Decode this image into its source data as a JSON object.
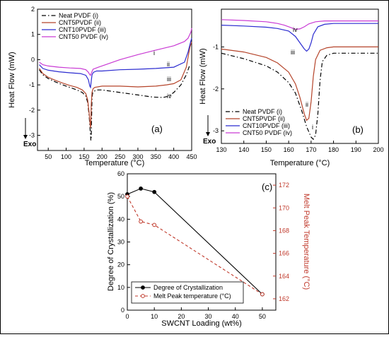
{
  "chart_data": [
    {
      "id": "a",
      "type": "line",
      "panel_label": "(a)",
      "xlabel": "Temperature (°C)",
      "ylabel": "Heat Flow (mW)",
      "exo_label": "Exo",
      "xlim": [
        20,
        450
      ],
      "ylim": [
        -3.6,
        2.0
      ],
      "xticks": [
        50,
        100,
        150,
        200,
        250,
        300,
        350,
        400,
        450
      ],
      "yticks": [
        -3,
        -2,
        -1,
        0,
        1,
        2
      ],
      "series": [
        {
          "name": "Neat PVDF (i)",
          "color": "#000000",
          "dash": "dashdot",
          "tag": "i",
          "x": [
            25,
            35,
            50,
            70,
            90,
            110,
            130,
            145,
            155,
            160,
            164,
            167,
            169,
            170,
            171,
            172,
            174,
            178,
            185,
            200,
            250,
            300,
            340,
            370,
            385,
            400,
            420,
            435,
            445
          ],
          "y": [
            -0.4,
            -0.6,
            -0.75,
            -0.88,
            -1.0,
            -1.1,
            -1.2,
            -1.3,
            -1.45,
            -1.7,
            -2.2,
            -2.8,
            -3.2,
            -3.1,
            -2.2,
            -1.5,
            -1.3,
            -1.25,
            -1.2,
            -1.2,
            -1.3,
            -1.4,
            -1.48,
            -1.5,
            -1.45,
            -1.3,
            -1.0,
            -0.6,
            -0.2
          ]
        },
        {
          "name": "CNT5PVDF (ii)",
          "color": "#b5442a",
          "dash": "solid",
          "tag": "ii",
          "x": [
            25,
            35,
            50,
            70,
            90,
            110,
            130,
            145,
            155,
            160,
            164,
            167,
            168,
            169,
            170,
            172,
            175,
            180,
            200,
            250,
            300,
            350,
            380,
            400,
            420,
            435,
            445,
            450
          ],
          "y": [
            -0.35,
            -0.55,
            -0.7,
            -0.82,
            -0.93,
            -1.02,
            -1.1,
            -1.2,
            -1.35,
            -1.6,
            -2.1,
            -2.6,
            -2.7,
            -2.4,
            -1.8,
            -1.3,
            -1.15,
            -1.1,
            -1.05,
            -1.05,
            -1.08,
            -1.05,
            -1.0,
            -0.95,
            -0.8,
            -0.3,
            0.5,
            0.7
          ]
        },
        {
          "name": "CNT10PVDF (iii)",
          "color": "#2b2bd0",
          "dash": "solid",
          "tag": "iii",
          "x": [
            25,
            35,
            50,
            80,
            110,
            140,
            155,
            162,
            166,
            168,
            170,
            172,
            176,
            185,
            200,
            250,
            300,
            350,
            400,
            430,
            440,
            447,
            450
          ],
          "y": [
            -0.2,
            -0.35,
            -0.42,
            -0.48,
            -0.52,
            -0.55,
            -0.62,
            -0.8,
            -1.05,
            -1.1,
            -0.85,
            -0.6,
            -0.5,
            -0.45,
            -0.45,
            -0.4,
            -0.38,
            -0.35,
            -0.3,
            -0.1,
            0.3,
            0.7,
            0.85
          ]
        },
        {
          "name": "CNT50 PVDF (iv)",
          "color": "#c93ad4",
          "dash": "solid",
          "tag": "iv",
          "x": [
            25,
            35,
            50,
            80,
            110,
            140,
            155,
            162,
            166,
            168,
            171,
            175,
            190,
            210,
            250,
            300,
            350,
            400,
            430,
            440,
            448,
            450
          ],
          "y": [
            -0.1,
            -0.2,
            -0.25,
            -0.3,
            -0.33,
            -0.35,
            -0.4,
            -0.5,
            -0.6,
            -0.62,
            -0.5,
            -0.38,
            -0.3,
            -0.2,
            0.0,
            0.2,
            0.38,
            0.55,
            0.72,
            0.85,
            1.1,
            1.25
          ]
        }
      ],
      "series_tags": [
        "i",
        "ii",
        "iii",
        "iv"
      ]
    },
    {
      "id": "b",
      "type": "line",
      "panel_label": "(b)",
      "xlabel": "Temperature (°C)",
      "ylabel": "Heat Flow (mW)",
      "exo_label": "Exo",
      "xlim": [
        130,
        200
      ],
      "ylim": [
        -3.3,
        -0.1
      ],
      "xticks": [
        130,
        140,
        150,
        160,
        170,
        180,
        190,
        200
      ],
      "yticks": [
        -3,
        -2,
        -1
      ],
      "series": [
        {
          "name": "Neat PVDF (i)",
          "color": "#000000",
          "dash": "dashdot",
          "tag": "i",
          "x": [
            130,
            140,
            150,
            155,
            160,
            163,
            166,
            168,
            170,
            171,
            172,
            173,
            174,
            175,
            177,
            180,
            190,
            200
          ],
          "y": [
            -1.15,
            -1.28,
            -1.45,
            -1.6,
            -1.85,
            -2.1,
            -2.55,
            -2.9,
            -3.15,
            -3.2,
            -3.1,
            -2.6,
            -1.8,
            -1.35,
            -1.2,
            -1.15,
            -1.15,
            -1.15
          ]
        },
        {
          "name": "CNT5PVDF (ii)",
          "color": "#b5442a",
          "dash": "solid",
          "tag": "ii",
          "x": [
            130,
            140,
            150,
            155,
            160,
            163,
            165,
            167,
            168,
            169,
            170,
            171,
            172,
            174,
            177,
            180,
            190,
            200
          ],
          "y": [
            -1.05,
            -1.12,
            -1.25,
            -1.38,
            -1.6,
            -1.88,
            -2.2,
            -2.6,
            -2.75,
            -2.7,
            -2.3,
            -1.7,
            -1.3,
            -1.08,
            -1.02,
            -1.0,
            -1.0,
            -1.0
          ]
        },
        {
          "name": "CNT10PVDF (iii)",
          "color": "#2b2bd0",
          "dash": "solid",
          "tag": "iii",
          "x": [
            130,
            140,
            150,
            155,
            160,
            163,
            165,
            167,
            168,
            169,
            170,
            171,
            173,
            176,
            180,
            190,
            200
          ],
          "y": [
            -0.48,
            -0.5,
            -0.53,
            -0.56,
            -0.62,
            -0.75,
            -0.9,
            -1.05,
            -1.1,
            -1.05,
            -0.9,
            -0.7,
            -0.52,
            -0.46,
            -0.44,
            -0.44,
            -0.44
          ]
        },
        {
          "name": "CNT50 PVDF (iv)",
          "color": "#c93ad4",
          "dash": "solid",
          "tag": "iv",
          "x": [
            130,
            140,
            150,
            155,
            158,
            161,
            163,
            165,
            167,
            169,
            172,
            176,
            180,
            190,
            200
          ],
          "y": [
            -0.35,
            -0.37,
            -0.4,
            -0.44,
            -0.48,
            -0.54,
            -0.58,
            -0.57,
            -0.52,
            -0.45,
            -0.4,
            -0.38,
            -0.38,
            -0.38,
            -0.38
          ]
        }
      ],
      "series_tags": [
        "iv",
        "iii",
        "ii",
        "i"
      ]
    },
    {
      "id": "c",
      "type": "line",
      "panel_label": "(c)",
      "xlabel": "SWCNT Loading (wt%)",
      "ylabel": "Degree of Crystallization (%)",
      "ylabel_right": "Melt Peak Temperature (°C)",
      "xlim": [
        0,
        55
      ],
      "ylim": [
        0,
        60
      ],
      "ylim_right": [
        161,
        173
      ],
      "xticks": [
        0,
        10,
        20,
        30,
        40,
        50
      ],
      "yticks": [
        0,
        10,
        20,
        30,
        40,
        50,
        60
      ],
      "yticks_right": [
        162,
        164,
        166,
        168,
        170,
        172
      ],
      "series": [
        {
          "name": "Degree of Crystallization",
          "color": "#000000",
          "axis": "left",
          "style": "solid",
          "marker": "filled-circle",
          "x": [
            0,
            5,
            10,
            50
          ],
          "y": [
            51,
            53.5,
            52,
            7
          ]
        },
        {
          "name": "Melt Peak temperature (°C)",
          "color": "#c0392b",
          "axis": "right",
          "style": "dashed",
          "marker": "open-circle",
          "x": [
            0,
            5,
            10,
            50
          ],
          "y": [
            171,
            168.8,
            168.5,
            162.4
          ]
        }
      ]
    }
  ]
}
